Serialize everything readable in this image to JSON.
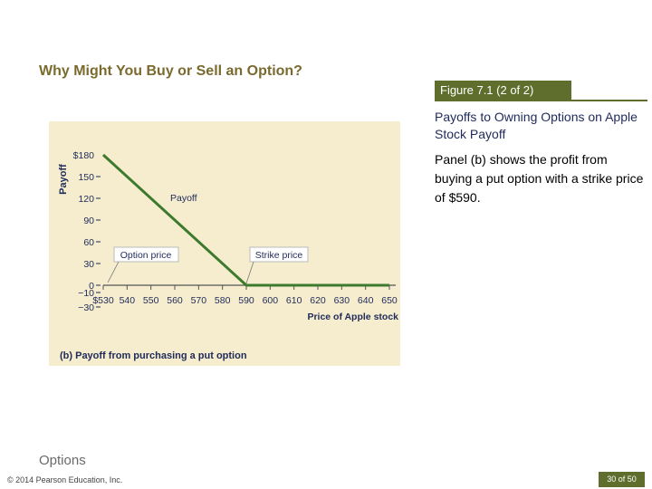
{
  "slide": {
    "title": "Why Might You Buy or Sell an Option?",
    "figure_label": "Figure 7.1 (2 of 2)",
    "figure_heading": "Payoffs to Owning Options on Apple Stock Payoff",
    "figure_body": "Panel (b) shows the profit from buying a put option with a strike price of $590.",
    "section": "Options",
    "copyright": "© 2014 Pearson Education, Inc.",
    "page": "30 of 50"
  },
  "colors": {
    "accent": "#5f6e2c",
    "title": "#7a6a2e",
    "chart_bg": "#f5edce",
    "payoff_line": "#3d7a2e",
    "axis_text": "#1f2a5a"
  },
  "chart_data": {
    "type": "line",
    "title": "(b) Payoff from purchasing a put option",
    "xlabel": "Price of Apple stock",
    "ylabel": "Payoff",
    "x_tick_labels": [
      "$530",
      "540",
      "550",
      "560",
      "570",
      "580",
      "590",
      "600",
      "610",
      "620",
      "630",
      "640",
      "650"
    ],
    "x_ticks": [
      530,
      540,
      550,
      560,
      570,
      580,
      590,
      600,
      610,
      620,
      630,
      640,
      650
    ],
    "y_tick_labels": [
      "$180",
      "150",
      "120",
      "90",
      "60",
      "30",
      "0",
      "−10",
      "−30"
    ],
    "y_ticks": [
      180,
      150,
      120,
      90,
      60,
      30,
      0,
      -10,
      -30
    ],
    "xlim": [
      530,
      650
    ],
    "ylim": [
      -30,
      180
    ],
    "series": [
      {
        "name": "Payoff",
        "x": [
          530,
          590,
          650
        ],
        "y": [
          180,
          0,
          0
        ]
      }
    ],
    "annotations": {
      "payoff": "Payoff",
      "option_price": "Option price",
      "strike_price": "Strike price"
    }
  }
}
